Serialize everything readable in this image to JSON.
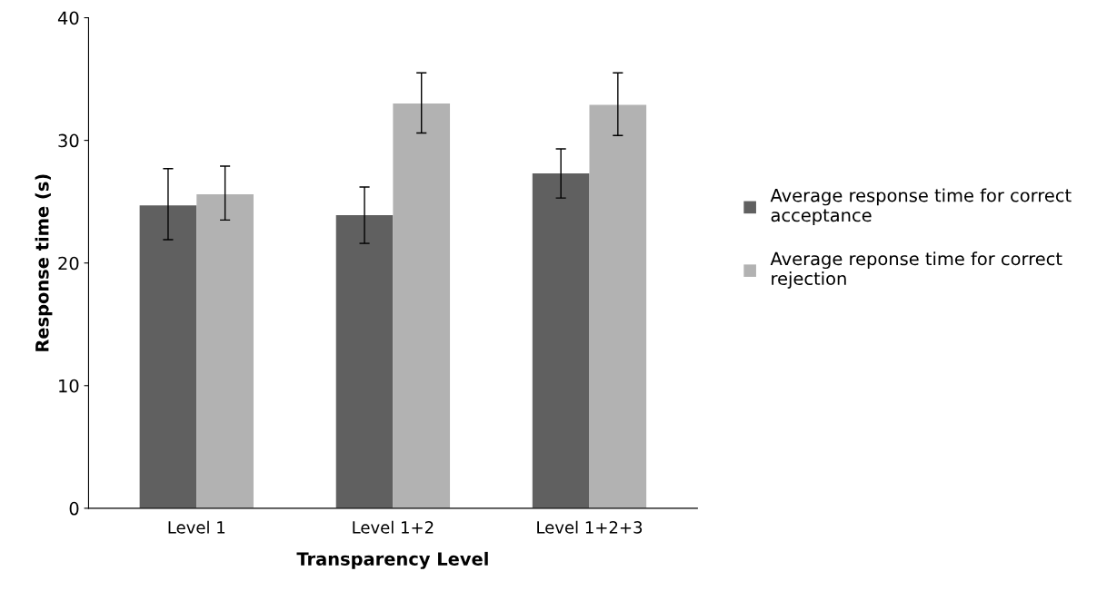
{
  "chart_data": {
    "type": "bar",
    "xlabel": "Transparency Level",
    "ylabel": "Response time (s)",
    "categories": [
      "Level 1",
      "Level 1+2",
      "Level 1+2+3"
    ],
    "series": [
      {
        "name": "Average response time for correct acceptance",
        "color": "#606060",
        "values": [
          24.7,
          23.9,
          27.3
        ],
        "errors": [
          [
            21.9,
            27.7
          ],
          [
            21.6,
            26.2
          ],
          [
            25.3,
            29.3
          ]
        ]
      },
      {
        "name": "Average reponse time for correct rejection",
        "color": "#b2b2b2",
        "values": [
          25.6,
          33.0,
          32.9
        ],
        "errors": [
          [
            23.5,
            27.9
          ],
          [
            30.6,
            35.5
          ],
          [
            30.4,
            35.5
          ]
        ]
      }
    ],
    "ylim": [
      0,
      40
    ],
    "yticks": [
      0,
      10,
      20,
      30,
      40
    ],
    "grid": false,
    "legend": "right"
  }
}
